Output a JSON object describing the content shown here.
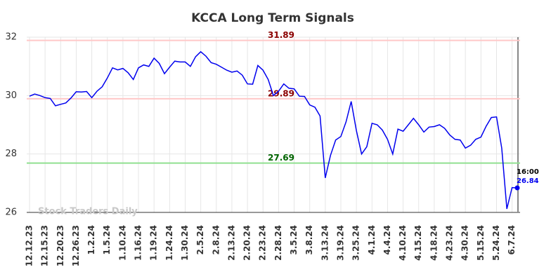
{
  "chart_data": {
    "type": "line",
    "title": "KCCA Long Term Signals",
    "watermark": "Stock Traders Daily",
    "categories": [
      "12.12.23",
      null,
      null,
      "12.15.23",
      null,
      null,
      "12.20.23",
      null,
      null,
      "12.26.23",
      null,
      null,
      "1.2.24",
      null,
      null,
      "1.5.24",
      null,
      null,
      "1.10.24",
      null,
      null,
      "1.16.24",
      null,
      null,
      "1.19.24",
      null,
      null,
      "1.24.24",
      null,
      null,
      "1.30.24",
      null,
      null,
      "2.5.24",
      null,
      null,
      "2.8.24",
      null,
      null,
      "2.13.24",
      null,
      null,
      "2.20.24",
      null,
      null,
      "2.23.24",
      null,
      null,
      "2.28.24",
      null,
      null,
      "3.5.24",
      null,
      null,
      "3.8.24",
      null,
      null,
      "3.13.24",
      null,
      null,
      "3.19.24",
      null,
      null,
      "3.25.24",
      null,
      null,
      "4.1.24",
      null,
      null,
      "4.4.24",
      null,
      null,
      "4.10.24",
      null,
      null,
      "4.15.24",
      null,
      null,
      "4.18.24",
      null,
      null,
      "4.23.24",
      null,
      null,
      "4.30.24",
      null,
      null,
      "5.15.24",
      null,
      null,
      "5.24.24",
      null,
      null,
      "6.7.24",
      null
    ],
    "values": [
      29.98,
      30.05,
      30.0,
      29.93,
      29.9,
      29.65,
      29.7,
      29.75,
      29.92,
      30.13,
      30.12,
      30.14,
      29.93,
      30.15,
      30.3,
      30.6,
      30.95,
      30.88,
      30.93,
      30.78,
      30.55,
      30.95,
      31.05,
      31.0,
      31.28,
      31.1,
      30.75,
      30.97,
      31.18,
      31.15,
      31.15,
      31.0,
      31.33,
      31.5,
      31.35,
      31.13,
      31.07,
      30.97,
      30.87,
      30.8,
      30.84,
      30.7,
      30.4,
      30.39,
      31.03,
      30.87,
      30.55,
      30.0,
      30.15,
      30.4,
      30.25,
      30.23,
      29.98,
      29.97,
      29.68,
      29.6,
      29.3,
      27.18,
      27.95,
      28.48,
      28.6,
      29.1,
      29.8,
      28.8,
      28.0,
      28.25,
      29.05,
      29.0,
      28.82,
      28.5,
      28.0,
      28.85,
      28.78,
      29.0,
      29.22,
      29.0,
      28.75,
      28.92,
      28.94,
      29.0,
      28.88,
      28.65,
      28.5,
      28.48,
      28.2,
      28.3,
      28.5,
      28.58,
      28.95,
      29.25,
      29.27,
      28.2,
      26.12,
      26.85,
      26.84
    ],
    "color": "#0000ee",
    "last_label": "16:00",
    "hlines": [
      {
        "value": 31.89,
        "color": "#ffc8c8",
        "label_color": "#8b0000"
      },
      {
        "value": 29.89,
        "color": "#ffc8c8",
        "label_color": "#8b0000"
      },
      {
        "value": 27.69,
        "color": "#90e090",
        "label_color": "#006400"
      }
    ],
    "ylim": [
      26,
      32
    ],
    "yticks": [
      26,
      28,
      30,
      32
    ],
    "grid": true
  }
}
